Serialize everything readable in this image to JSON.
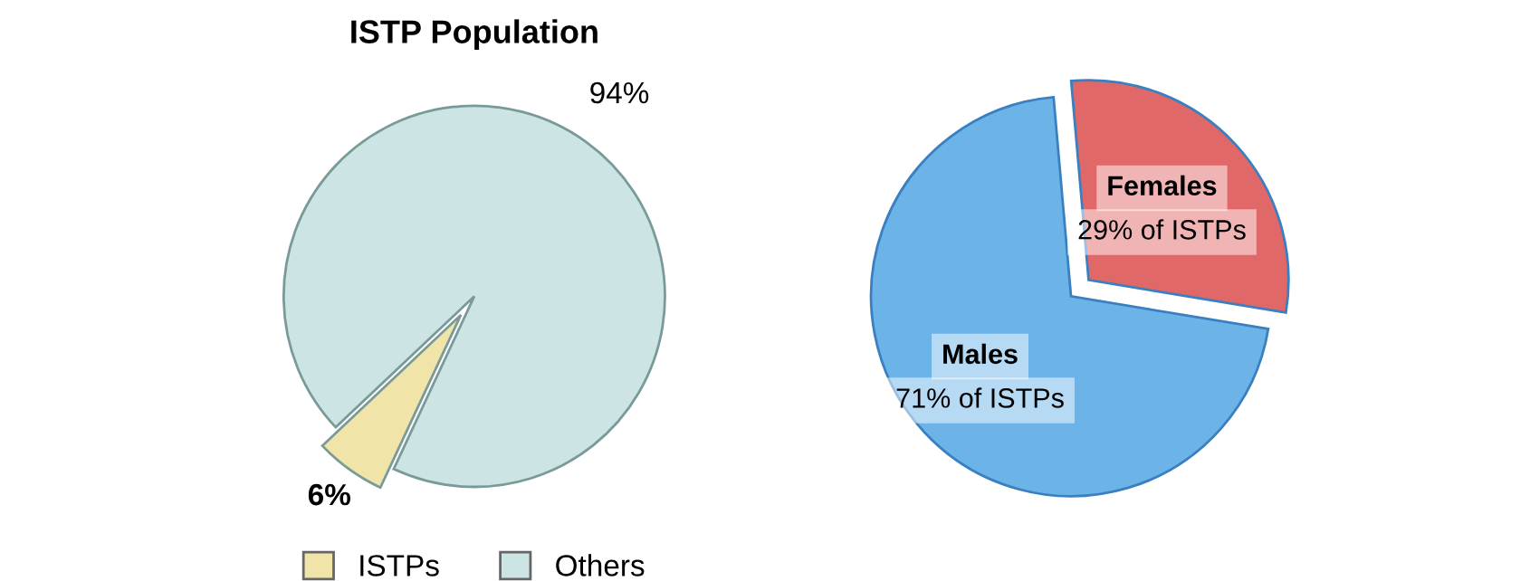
{
  "chart_data": [
    {
      "type": "pie",
      "title": "ISTP Population",
      "categories": [
        "ISTPs",
        "Others"
      ],
      "values": [
        6,
        94
      ],
      "colors": [
        "#f0e4a8",
        "#cde4e4"
      ],
      "value_labels": [
        "6%",
        "94%"
      ],
      "legend": "bottom"
    },
    {
      "type": "pie",
      "categories": [
        "Females",
        "Males"
      ],
      "values": [
        29,
        71
      ],
      "colors": [
        "#e06868",
        "#6cb4e8"
      ],
      "value_labels": [
        "29% of ISTPs",
        "71% of ISTPs"
      ]
    }
  ]
}
